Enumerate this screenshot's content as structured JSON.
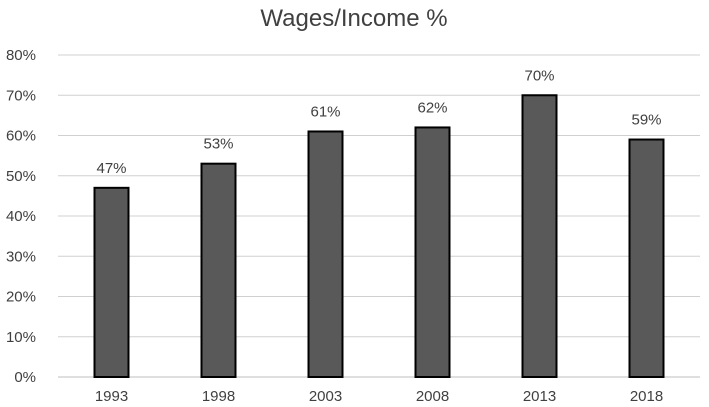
{
  "chart_data": {
    "type": "bar",
    "title": "Wages/Income %",
    "categories": [
      "1993",
      "1998",
      "2003",
      "2008",
      "2013",
      "2018"
    ],
    "values": [
      47,
      53,
      61,
      62,
      70,
      59
    ],
    "data_labels": [
      "47%",
      "53%",
      "61%",
      "62%",
      "70%",
      "59%"
    ],
    "xlabel": "",
    "ylabel": "",
    "ylim": [
      0,
      80
    ],
    "y_ticks": [
      0,
      10,
      20,
      30,
      40,
      50,
      60,
      70,
      80
    ],
    "y_tick_labels": [
      "0%",
      "10%",
      "20%",
      "30%",
      "40%",
      "50%",
      "60%",
      "70%",
      "80%"
    ],
    "grid": true,
    "legend": "none",
    "colors": {
      "bar_fill": "#595959",
      "bar_stroke": "#000000",
      "grid": "#d0d0d0",
      "text": "#404040"
    }
  }
}
